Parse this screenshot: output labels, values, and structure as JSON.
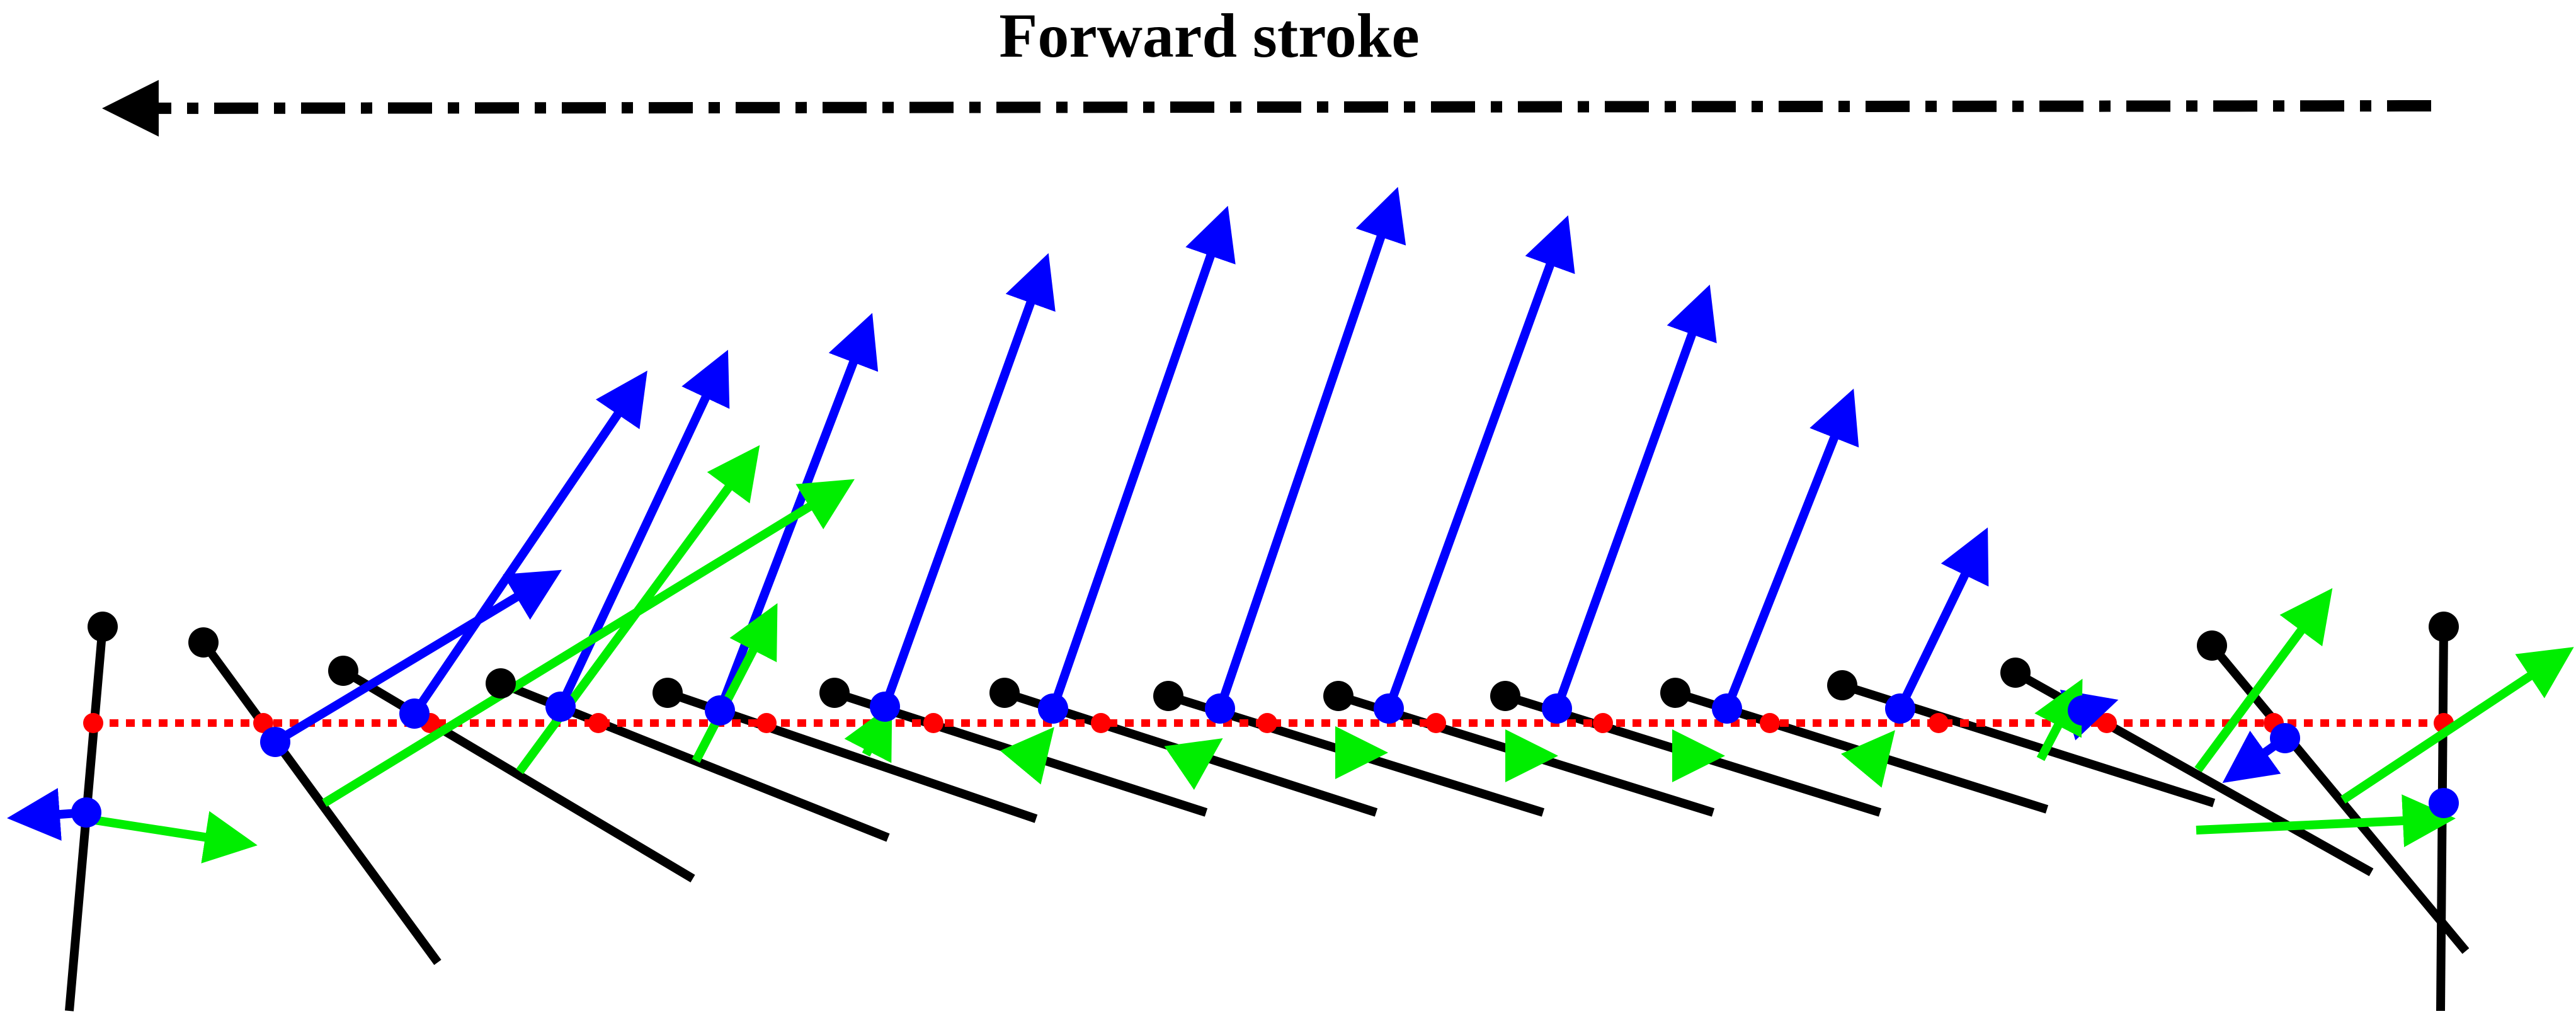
{
  "title": "Forward stroke",
  "colors": {
    "wing": "#000000",
    "lift_vector": "#0000ff",
    "drag_vector": "#00ee00",
    "stroke_plane": "#ff0000",
    "direction_arrow": "#000000"
  },
  "legend_items": [],
  "stroke_direction": "right-to-left",
  "snapshot_count": 15
}
